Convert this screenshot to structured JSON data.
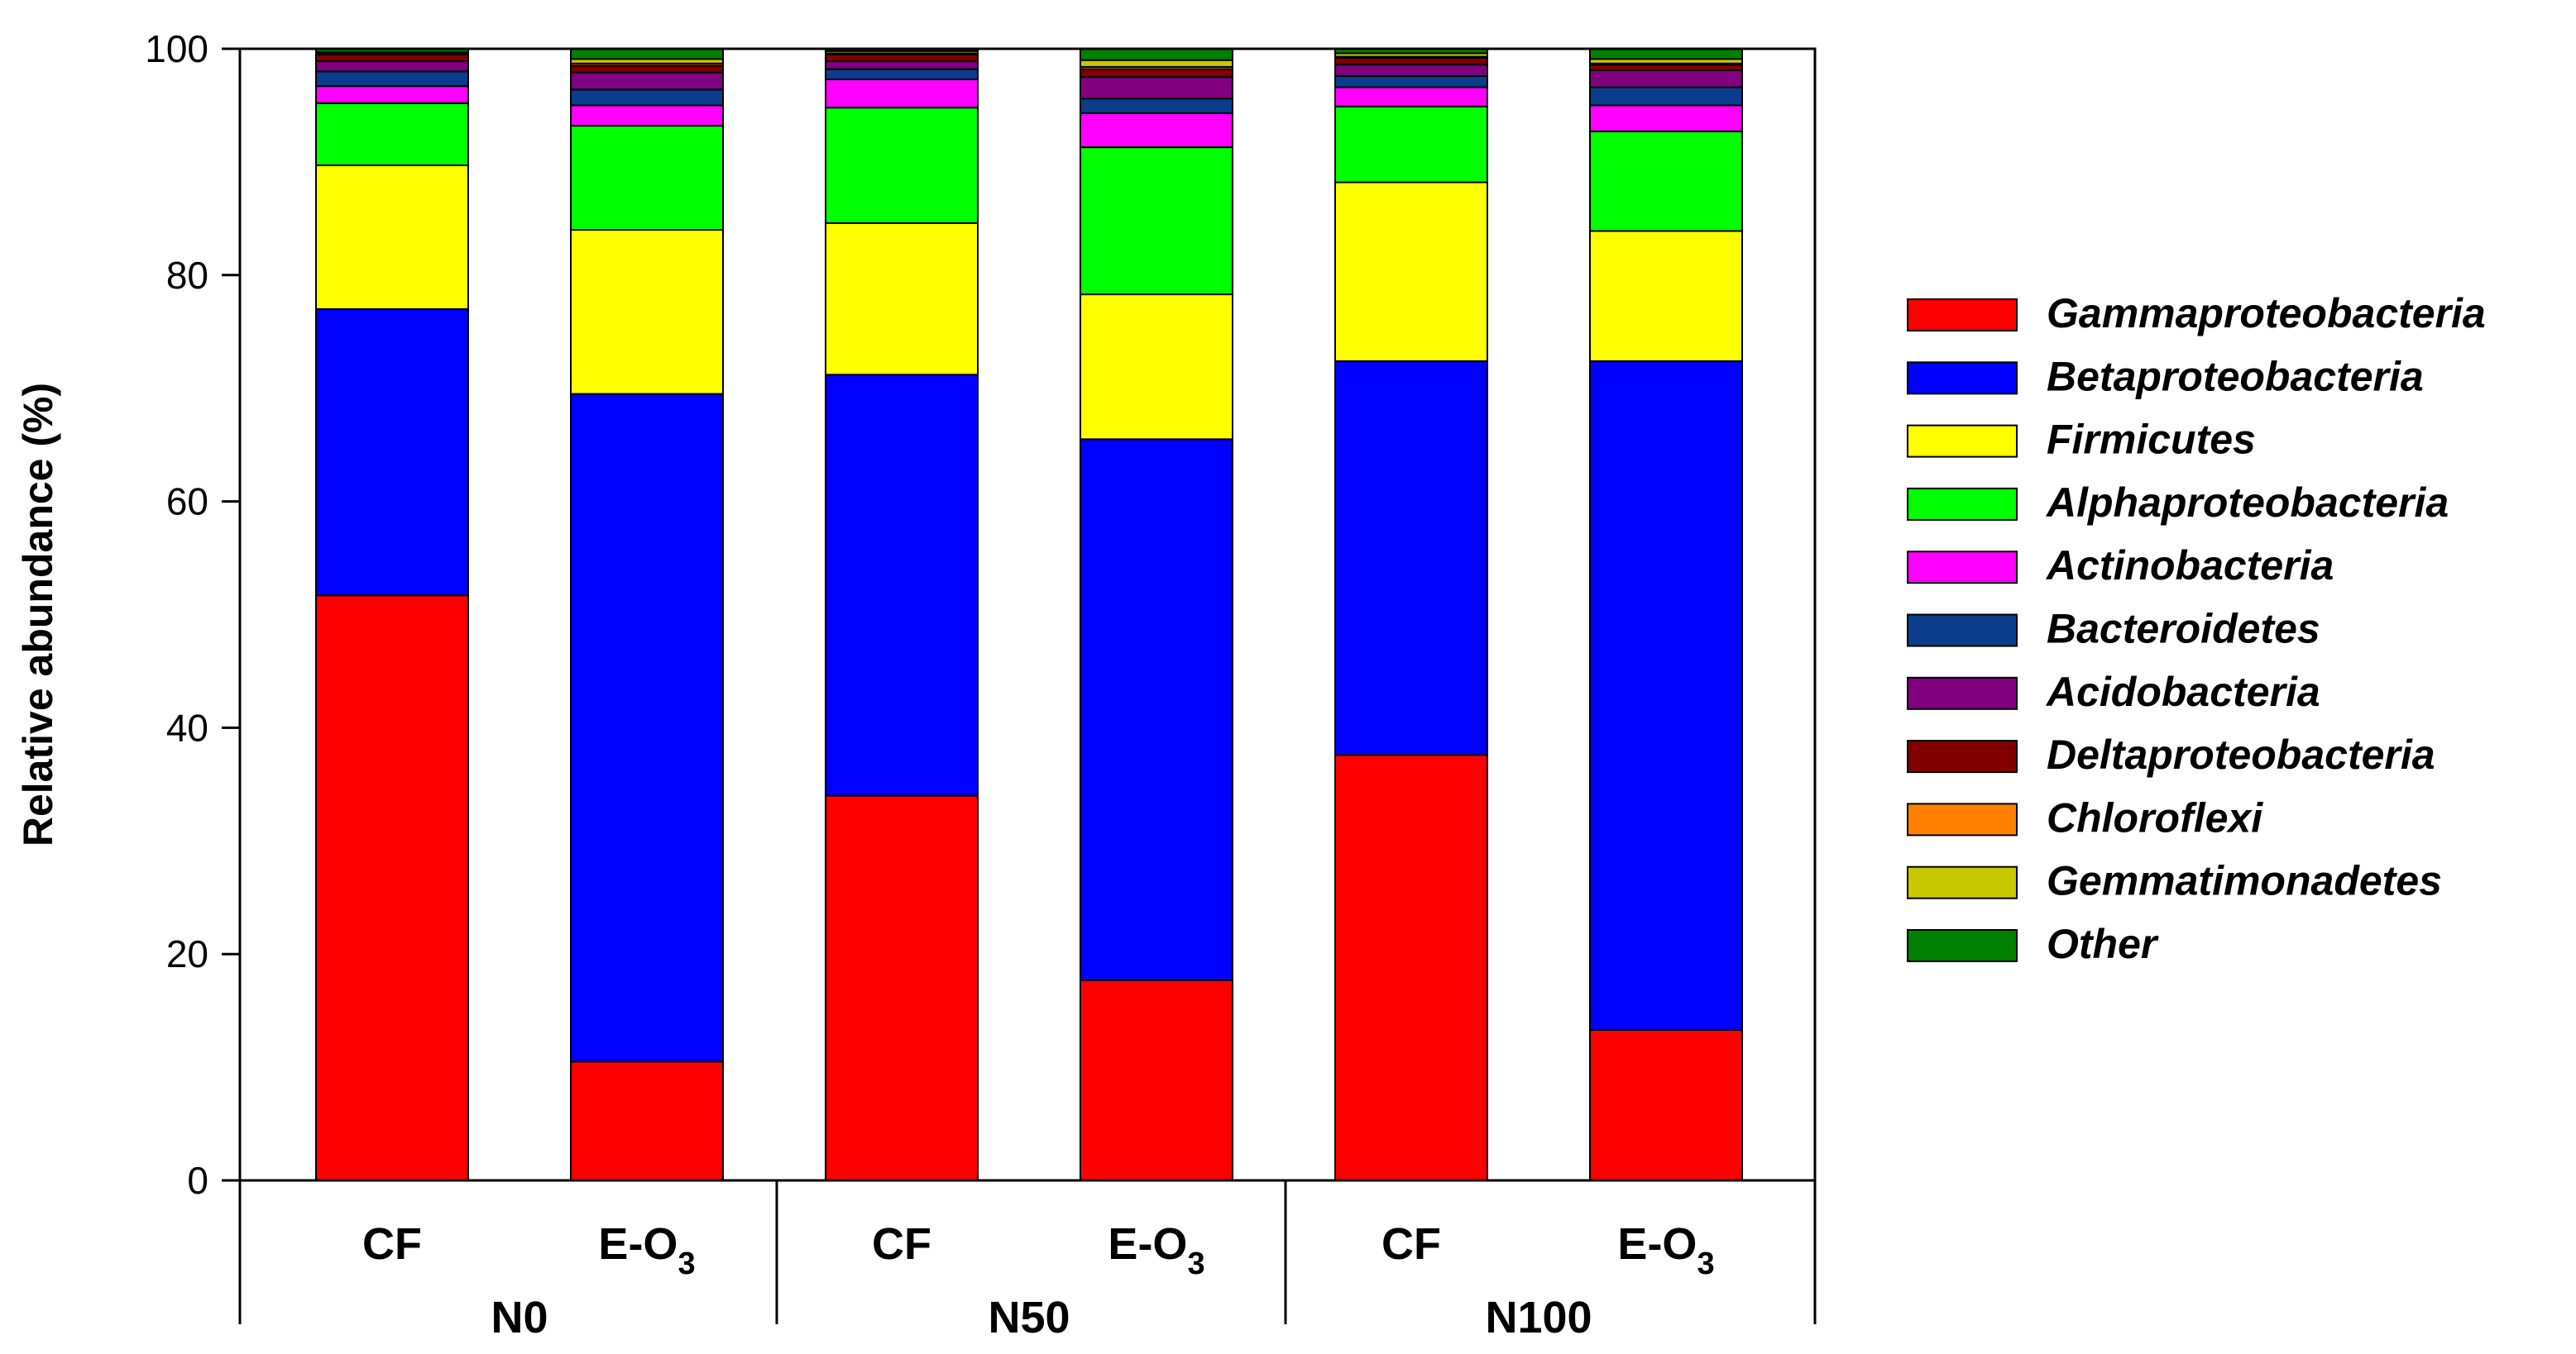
{
  "chart_data": {
    "type": "bar",
    "stacked": true,
    "ylabel": "Relative abundance (%)",
    "xlabel": "",
    "ylim": [
      0,
      100
    ],
    "yticks": [
      "0",
      "20",
      "40",
      "60",
      "80",
      "100"
    ],
    "categories": [
      {
        "label": "CF",
        "group": "N0"
      },
      {
        "label": "E-O",
        "sub": "3",
        "group": "N0"
      },
      {
        "label": "CF",
        "group": "N50"
      },
      {
        "label": "E-O",
        "sub": "3",
        "group": "N50"
      },
      {
        "label": "CF",
        "group": "N100"
      },
      {
        "label": "E-O",
        "sub": "3",
        "group": "N100"
      }
    ],
    "groups": [
      "N0",
      "N50",
      "N100"
    ],
    "series": [
      {
        "name": "Gammaproteobacteria",
        "color": "#ff0000",
        "values": [
          51.7,
          10.5,
          34.0,
          17.7,
          37.6,
          13.3
        ]
      },
      {
        "name": "Betaproteobacteria",
        "color": "#0000ff",
        "values": [
          25.3,
          59.0,
          37.2,
          47.8,
          34.8,
          59.1
        ]
      },
      {
        "name": "Firmicutes",
        "color": "#ffff00",
        "values": [
          12.7,
          14.5,
          13.4,
          12.8,
          15.8,
          11.5
        ]
      },
      {
        "name": "Alphaproteobacteria",
        "color": "#00ff00",
        "values": [
          5.5,
          9.2,
          10.2,
          13.0,
          6.7,
          8.8
        ]
      },
      {
        "name": "Actinobacteria",
        "color": "#ff00ff",
        "values": [
          1.5,
          1.8,
          2.5,
          3.0,
          1.7,
          2.3
        ]
      },
      {
        "name": "Bacteroidetes",
        "color": "#0a3d8c",
        "values": [
          1.3,
          1.4,
          0.9,
          1.3,
          1.0,
          1.6
        ]
      },
      {
        "name": "Acidobacteria",
        "color": "#800080",
        "values": [
          0.9,
          1.5,
          0.7,
          1.9,
          1.0,
          1.5
        ]
      },
      {
        "name": "Deltaproteobacteria",
        "color": "#800000",
        "values": [
          0.6,
          0.6,
          0.6,
          0.7,
          0.6,
          0.5
        ]
      },
      {
        "name": "Chloroflexi",
        "color": "#ff8000",
        "values": [
          0.1,
          0.2,
          0.1,
          0.2,
          0.1,
          0.1
        ]
      },
      {
        "name": "Gemmatimonadetes",
        "color": "#c8c800",
        "values": [
          0.1,
          0.4,
          0.2,
          0.6,
          0.3,
          0.4
        ]
      },
      {
        "name": "Other",
        "color": "#008000",
        "values": [
          0.3,
          0.9,
          0.2,
          1.0,
          0.4,
          0.9
        ]
      }
    ],
    "legend_position": "right"
  }
}
